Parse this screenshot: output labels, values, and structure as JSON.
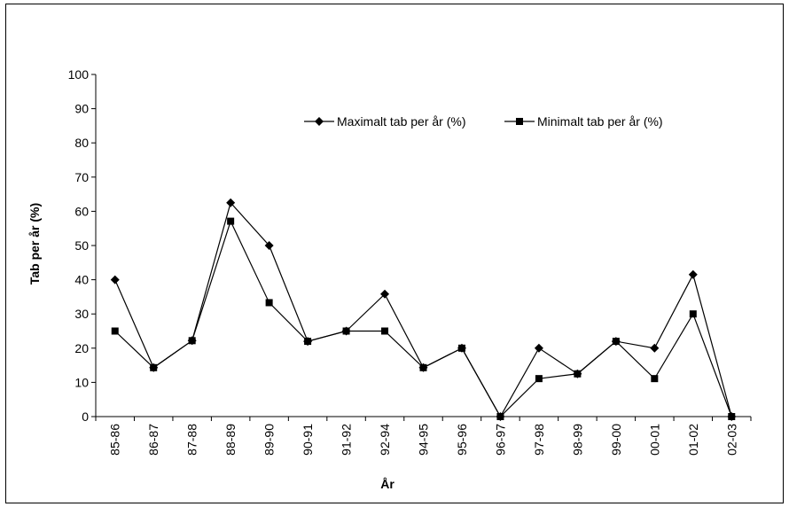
{
  "chart_data": {
    "type": "line",
    "title": "",
    "xlabel": "År",
    "ylabel": "Tab per år (%)",
    "ylim": [
      0,
      100
    ],
    "yticks": [
      0,
      10,
      20,
      30,
      40,
      50,
      60,
      70,
      80,
      90,
      100
    ],
    "grid": false,
    "legend_position": "top-right",
    "categories": [
      "85-86",
      "86-87",
      "87-88",
      "88-89",
      "89-90",
      "90-91",
      "91-92",
      "92-94",
      "94-95",
      "95-96",
      "96-97",
      "97-98",
      "98-99",
      "99-00",
      "00-01",
      "01-02",
      "02-03"
    ],
    "series": [
      {
        "name": "Maximalt tab per år (%)",
        "marker": "diamond",
        "color": "#000000",
        "values": [
          40,
          14.3,
          22.2,
          62.5,
          50,
          22,
          25,
          35.8,
          14.3,
          20,
          0,
          20,
          12.5,
          22,
          20,
          41.5,
          0
        ]
      },
      {
        "name": "Minimalt tab per år (%)",
        "marker": "square",
        "color": "#000000",
        "values": [
          25,
          14.3,
          22.2,
          57.1,
          33.3,
          22,
          25,
          25,
          14.3,
          20,
          0,
          11.1,
          12.5,
          22,
          11.1,
          30,
          0
        ]
      }
    ]
  }
}
